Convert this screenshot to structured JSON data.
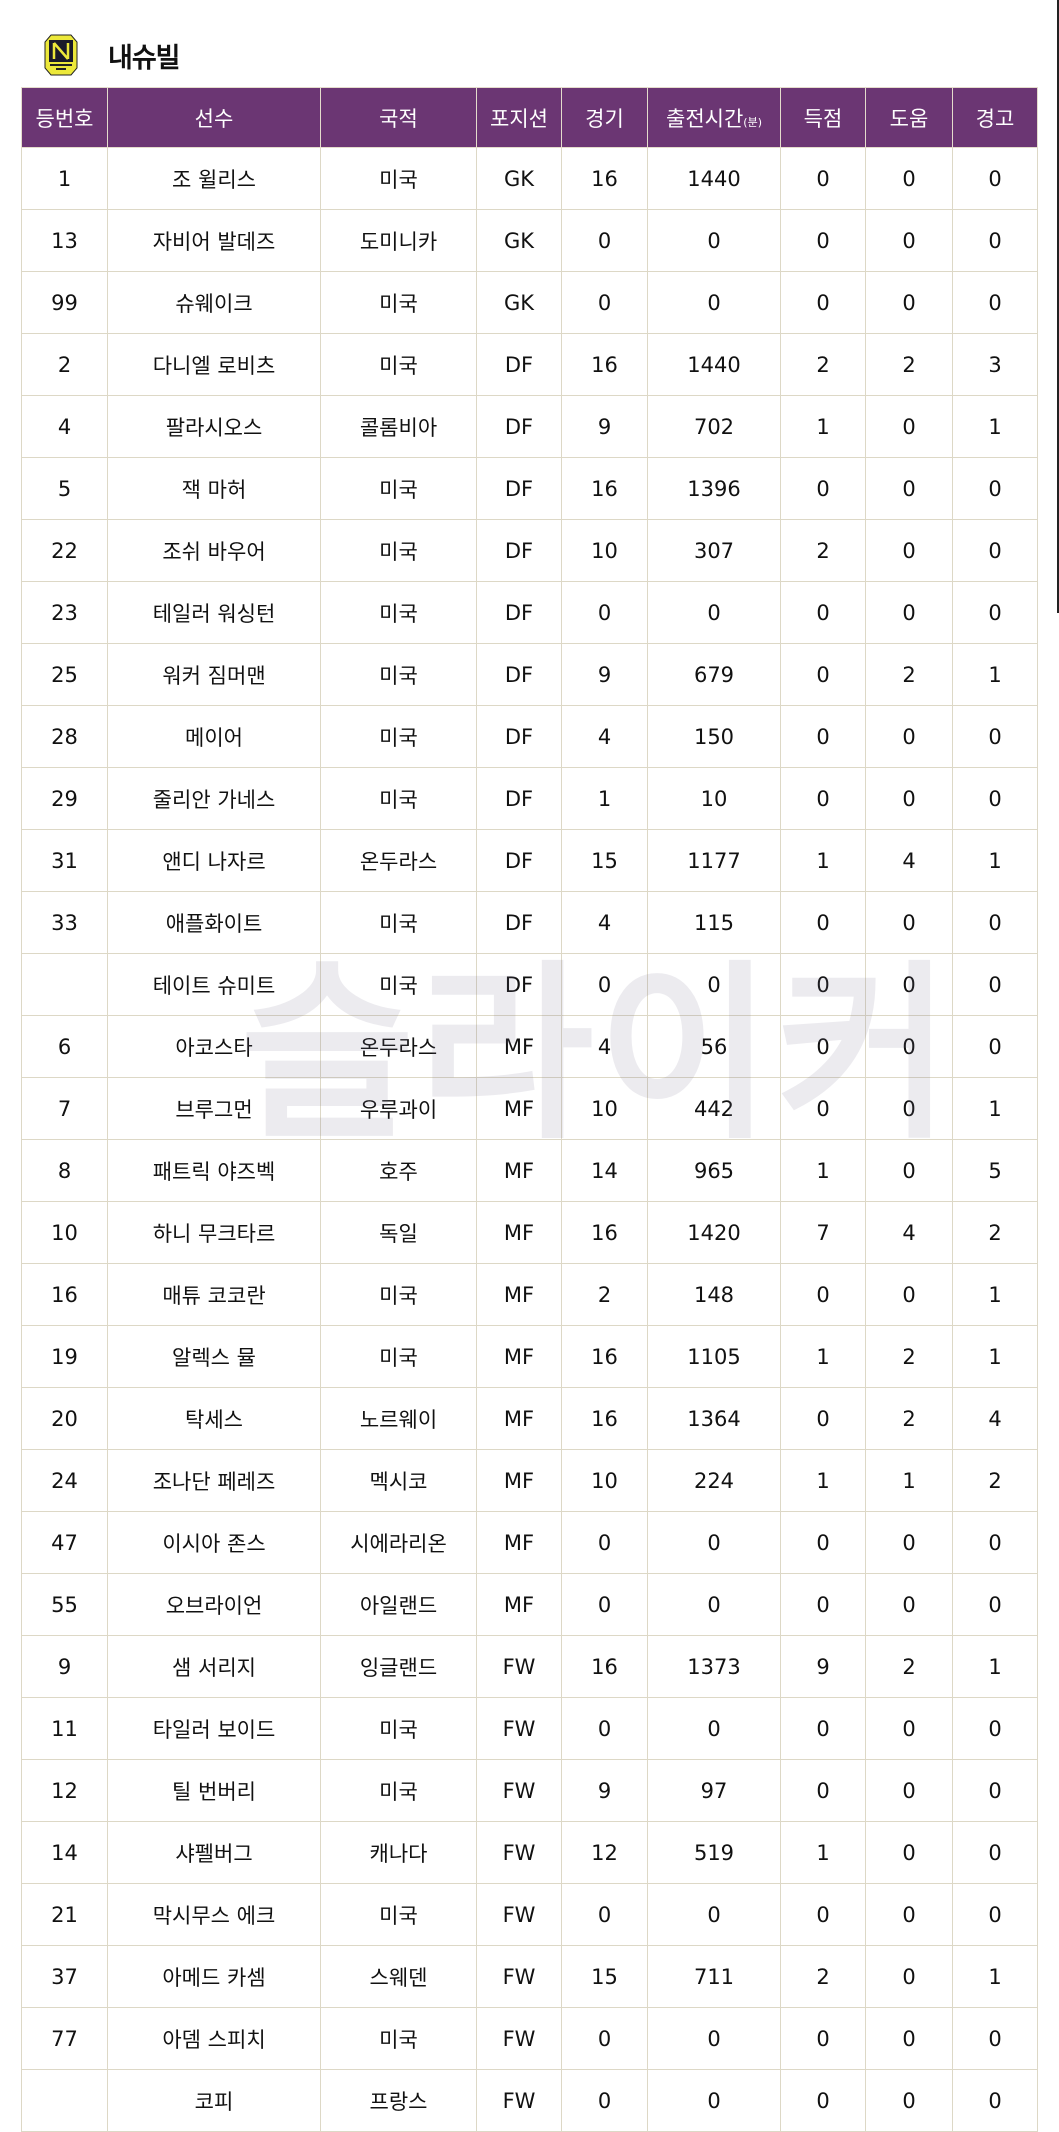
{
  "team": {
    "name": "내슈빌",
    "logo_text": "NASHVILLE SC",
    "logo_color": "#ece83a"
  },
  "header_color": "#6b3673",
  "columns": [
    "등번호",
    "선수",
    "국적",
    "포지션",
    "경기",
    "출전시간",
    "득점",
    "도움",
    "경고"
  ],
  "minutes_unit": "(분)",
  "watermark": "슬라이커",
  "rows": [
    [
      "1",
      "조 윌리스",
      "미국",
      "GK",
      "16",
      "1440",
      "0",
      "0",
      "0"
    ],
    [
      "13",
      "자비어 발데즈",
      "도미니카",
      "GK",
      "0",
      "0",
      "0",
      "0",
      "0"
    ],
    [
      "99",
      "슈웨이크",
      "미국",
      "GK",
      "0",
      "0",
      "0",
      "0",
      "0"
    ],
    [
      "2",
      "다니엘 로비츠",
      "미국",
      "DF",
      "16",
      "1440",
      "2",
      "2",
      "3"
    ],
    [
      "4",
      "팔라시오스",
      "콜롬비아",
      "DF",
      "9",
      "702",
      "1",
      "0",
      "1"
    ],
    [
      "5",
      "잭 마허",
      "미국",
      "DF",
      "16",
      "1396",
      "0",
      "0",
      "0"
    ],
    [
      "22",
      "조쉬 바우어",
      "미국",
      "DF",
      "10",
      "307",
      "2",
      "0",
      "0"
    ],
    [
      "23",
      "테일러 워싱턴",
      "미국",
      "DF",
      "0",
      "0",
      "0",
      "0",
      "0"
    ],
    [
      "25",
      "워커 짐머맨",
      "미국",
      "DF",
      "9",
      "679",
      "0",
      "2",
      "1"
    ],
    [
      "28",
      "메이어",
      "미국",
      "DF",
      "4",
      "150",
      "0",
      "0",
      "0"
    ],
    [
      "29",
      "줄리안 가네스",
      "미국",
      "DF",
      "1",
      "10",
      "0",
      "0",
      "0"
    ],
    [
      "31",
      "앤디 나자르",
      "온두라스",
      "DF",
      "15",
      "1177",
      "1",
      "4",
      "1"
    ],
    [
      "33",
      "애플화이트",
      "미국",
      "DF",
      "4",
      "115",
      "0",
      "0",
      "0"
    ],
    [
      "",
      "테이트 슈미트",
      "미국",
      "DF",
      "0",
      "0",
      "0",
      "0",
      "0"
    ],
    [
      "6",
      "아코스타",
      "온두라스",
      "MF",
      "4",
      "56",
      "0",
      "0",
      "0"
    ],
    [
      "7",
      "브루그먼",
      "우루과이",
      "MF",
      "10",
      "442",
      "0",
      "0",
      "1"
    ],
    [
      "8",
      "패트릭 야즈벡",
      "호주",
      "MF",
      "14",
      "965",
      "1",
      "0",
      "5"
    ],
    [
      "10",
      "하니 무크타르",
      "독일",
      "MF",
      "16",
      "1420",
      "7",
      "4",
      "2"
    ],
    [
      "16",
      "매튜 코코란",
      "미국",
      "MF",
      "2",
      "148",
      "0",
      "0",
      "1"
    ],
    [
      "19",
      "알렉스 뮬",
      "미국",
      "MF",
      "16",
      "1105",
      "1",
      "2",
      "1"
    ],
    [
      "20",
      "탁세스",
      "노르웨이",
      "MF",
      "16",
      "1364",
      "0",
      "2",
      "4"
    ],
    [
      "24",
      "조나단 페레즈",
      "멕시코",
      "MF",
      "10",
      "224",
      "1",
      "1",
      "2"
    ],
    [
      "47",
      "이시아 존스",
      "시에라리온",
      "MF",
      "0",
      "0",
      "0",
      "0",
      "0"
    ],
    [
      "55",
      "오브라이언",
      "아일랜드",
      "MF",
      "0",
      "0",
      "0",
      "0",
      "0"
    ],
    [
      "9",
      "샘 서리지",
      "잉글랜드",
      "FW",
      "16",
      "1373",
      "9",
      "2",
      "1"
    ],
    [
      "11",
      "타일러 보이드",
      "미국",
      "FW",
      "0",
      "0",
      "0",
      "0",
      "0"
    ],
    [
      "12",
      "틸 번버리",
      "미국",
      "FW",
      "9",
      "97",
      "0",
      "0",
      "0"
    ],
    [
      "14",
      "샤펠버그",
      "캐나다",
      "FW",
      "12",
      "519",
      "1",
      "0",
      "0"
    ],
    [
      "21",
      "막시무스 에크",
      "미국",
      "FW",
      "0",
      "0",
      "0",
      "0",
      "0"
    ],
    [
      "37",
      "아메드 카셈",
      "스웨덴",
      "FW",
      "15",
      "711",
      "2",
      "0",
      "1"
    ],
    [
      "77",
      "아뎀 스피치",
      "미국",
      "FW",
      "0",
      "0",
      "0",
      "0",
      "0"
    ],
    [
      "",
      "코피",
      "프랑스",
      "FW",
      "0",
      "0",
      "0",
      "0",
      "0"
    ]
  ]
}
